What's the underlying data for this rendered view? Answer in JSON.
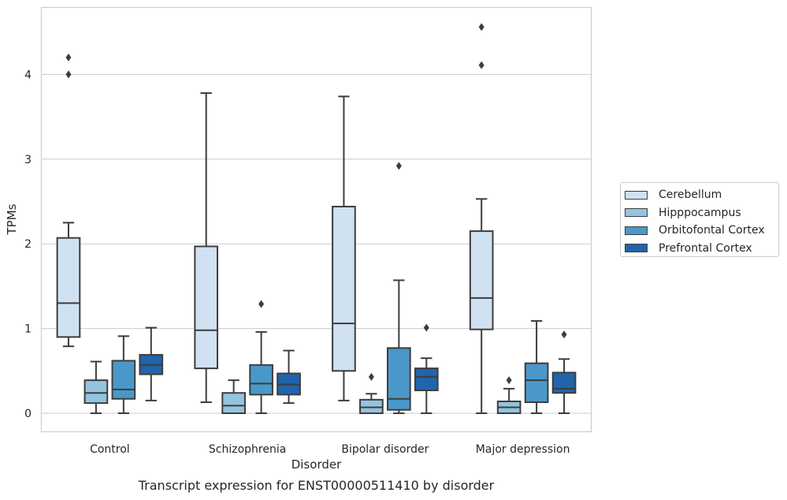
{
  "chart_data": {
    "type": "box",
    "title": "Transcript expression for ENST00000511410 by disorder",
    "xlabel": "Disorder",
    "ylabel": "TPMs",
    "ylim": [
      -0.22,
      4.8
    ],
    "yticks": [
      0,
      1,
      2,
      3,
      4
    ],
    "grid": "horizontal",
    "legend_position": "right",
    "categories": [
      "Control",
      "Schizophrenia",
      "Bipolar disorder",
      "Major depression"
    ],
    "series": [
      {
        "name": "Cerebellum",
        "color": "#d0e1f2",
        "boxes": [
          {
            "whisker_low": 0.79,
            "q1": 0.9,
            "median": 1.3,
            "q3": 2.07,
            "whisker_high": 2.25,
            "outliers": [
              4.0,
              4.2
            ]
          },
          {
            "whisker_low": 0.13,
            "q1": 0.53,
            "median": 0.98,
            "q3": 1.97,
            "whisker_high": 3.78,
            "outliers": []
          },
          {
            "whisker_low": 0.15,
            "q1": 0.5,
            "median": 1.06,
            "q3": 2.44,
            "whisker_high": 3.74,
            "outliers": []
          },
          {
            "whisker_low": 0.0,
            "q1": 0.99,
            "median": 1.36,
            "q3": 2.15,
            "whisker_high": 2.53,
            "outliers": [
              4.11,
              4.56
            ]
          }
        ]
      },
      {
        "name": "Hipppocampus",
        "color": "#94c4df",
        "boxes": [
          {
            "whisker_low": 0.0,
            "q1": 0.12,
            "median": 0.24,
            "q3": 0.39,
            "whisker_high": 0.61,
            "outliers": []
          },
          {
            "whisker_low": 0.0,
            "q1": 0.0,
            "median": 0.09,
            "q3": 0.24,
            "whisker_high": 0.39,
            "outliers": []
          },
          {
            "whisker_low": 0.0,
            "q1": 0.0,
            "median": 0.07,
            "q3": 0.16,
            "whisker_high": 0.23,
            "outliers": [
              0.43
            ]
          },
          {
            "whisker_low": 0.0,
            "q1": 0.0,
            "median": 0.07,
            "q3": 0.14,
            "whisker_high": 0.29,
            "outliers": [
              0.39
            ]
          }
        ]
      },
      {
        "name": "Orbitofontal Cortex",
        "color": "#4a98c9",
        "boxes": [
          {
            "whisker_low": 0.0,
            "q1": 0.17,
            "median": 0.28,
            "q3": 0.62,
            "whisker_high": 0.91,
            "outliers": []
          },
          {
            "whisker_low": 0.0,
            "q1": 0.22,
            "median": 0.35,
            "q3": 0.57,
            "whisker_high": 0.96,
            "outliers": [
              1.29
            ]
          },
          {
            "whisker_low": 0.0,
            "q1": 0.04,
            "median": 0.17,
            "q3": 0.77,
            "whisker_high": 1.57,
            "outliers": [
              2.92
            ]
          },
          {
            "whisker_low": 0.0,
            "q1": 0.13,
            "median": 0.39,
            "q3": 0.59,
            "whisker_high": 1.09,
            "outliers": []
          }
        ]
      },
      {
        "name": "Prefrontal Cortex",
        "color": "#2164ab",
        "boxes": [
          {
            "whisker_low": 0.15,
            "q1": 0.46,
            "median": 0.57,
            "q3": 0.69,
            "whisker_high": 1.01,
            "outliers": []
          },
          {
            "whisker_low": 0.12,
            "q1": 0.22,
            "median": 0.34,
            "q3": 0.47,
            "whisker_high": 0.74,
            "outliers": []
          },
          {
            "whisker_low": 0.0,
            "q1": 0.27,
            "median": 0.43,
            "q3": 0.53,
            "whisker_high": 0.65,
            "outliers": [
              1.01
            ]
          },
          {
            "whisker_low": 0.0,
            "q1": 0.24,
            "median": 0.29,
            "q3": 0.48,
            "whisker_high": 0.64,
            "outliers": [
              0.93
            ]
          }
        ]
      }
    ]
  }
}
